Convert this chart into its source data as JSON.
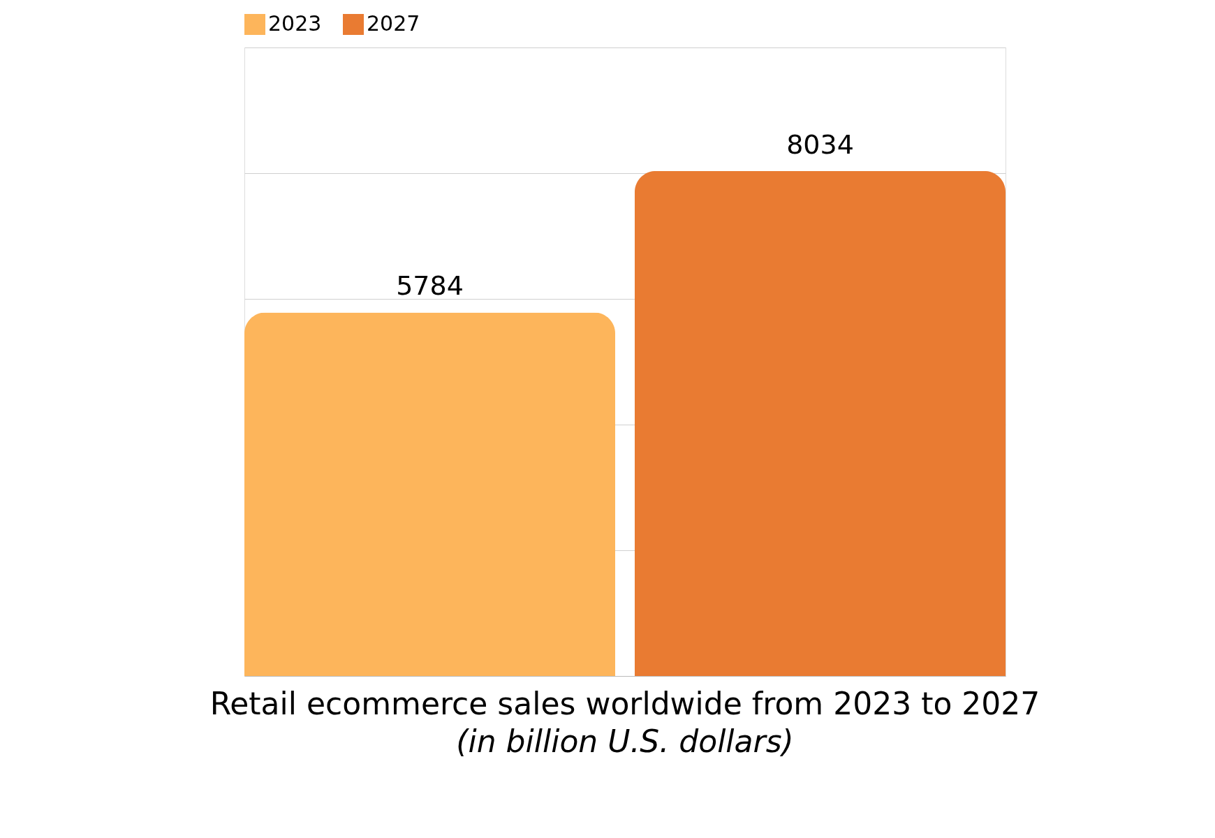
{
  "chart_data": {
    "type": "bar",
    "title": "Retail ecommerce sales worldwide from 2023 to 2027",
    "subtitle": "(in billion U.S. dollars)",
    "categories": [
      null
    ],
    "series": [
      {
        "name": "2023",
        "color": "#fdb55b",
        "values": [
          5784
        ]
      },
      {
        "name": "2027",
        "color": "#e97b32",
        "values": [
          8034
        ]
      }
    ],
    "ylim": [
      0,
      10000
    ],
    "yticks": [
      {
        "value": 0,
        "label": null
      },
      {
        "value": 2000,
        "label": null
      },
      {
        "value": 4000,
        "label": null
      },
      {
        "value": 6000,
        "label": null
      },
      {
        "value": 8000,
        "label": null
      },
      {
        "value": 10000,
        "label": null
      }
    ],
    "grid": "y",
    "legend": "top",
    "tick_labels": false,
    "data_labels": true
  }
}
